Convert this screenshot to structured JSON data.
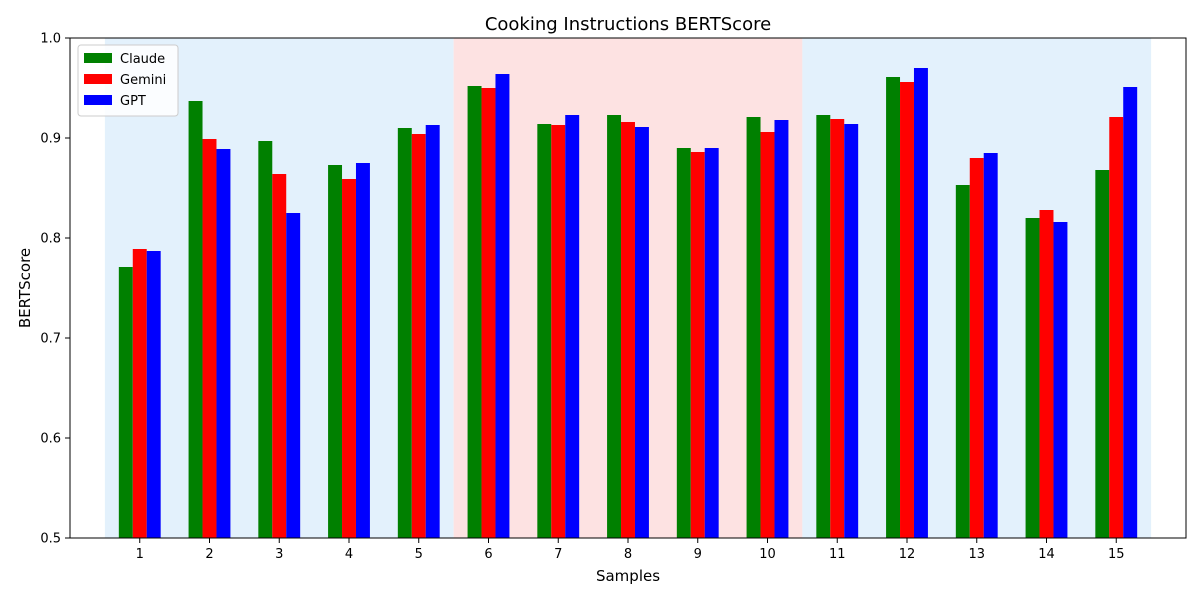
{
  "chart_data": {
    "type": "bar",
    "title": "Cooking Instructions BERTScore",
    "xlabel": "Samples",
    "ylabel": "BERTScore",
    "ylim": [
      0.5,
      1.0
    ],
    "yticks": [
      0.5,
      0.6,
      0.7,
      0.8,
      0.9,
      1.0
    ],
    "categories": [
      "1",
      "2",
      "3",
      "4",
      "5",
      "6",
      "7",
      "8",
      "9",
      "10",
      "11",
      "12",
      "13",
      "14",
      "15"
    ],
    "series": [
      {
        "name": "Claude",
        "color": "#008000",
        "values": [
          0.771,
          0.937,
          0.897,
          0.873,
          0.91,
          0.952,
          0.914,
          0.923,
          0.89,
          0.921,
          0.923,
          0.961,
          0.853,
          0.82,
          0.868
        ]
      },
      {
        "name": "Gemini",
        "color": "#ff0000",
        "values": [
          0.789,
          0.899,
          0.864,
          0.859,
          0.904,
          0.95,
          0.913,
          0.916,
          0.886,
          0.906,
          0.919,
          0.956,
          0.88,
          0.828,
          0.921
        ]
      },
      {
        "name": "GPT",
        "color": "#0000ff",
        "values": [
          0.787,
          0.889,
          0.825,
          0.875,
          0.913,
          0.964,
          0.923,
          0.911,
          0.89,
          0.918,
          0.914,
          0.97,
          0.885,
          0.816,
          0.951
        ]
      }
    ],
    "background_bands": [
      {
        "from_category": "1",
        "to_category": "5",
        "color": "#e3f1fc"
      },
      {
        "from_category": "6",
        "to_category": "10",
        "color": "#fde2e2"
      },
      {
        "from_category": "11",
        "to_category": "15",
        "color": "#e3f1fc"
      }
    ],
    "legend_position": "top-left",
    "grid": false
  }
}
